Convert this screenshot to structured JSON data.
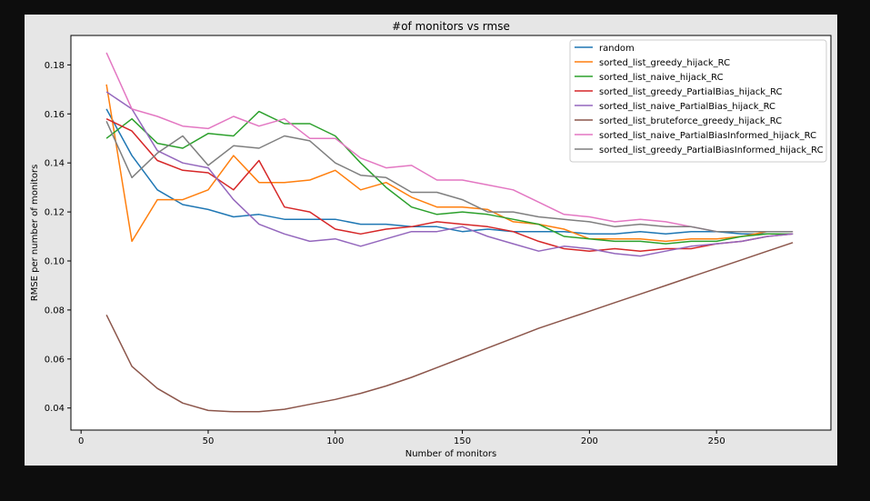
{
  "chart_data": {
    "type": "line",
    "title": "#of monitors vs rmse",
    "xlabel": "Number of monitors",
    "ylabel": "RMSE per number of monitors",
    "xlim": [
      -4,
      295
    ],
    "ylim": [
      0.031,
      0.192
    ],
    "xticks": [
      0,
      50,
      100,
      150,
      200,
      250
    ],
    "xtick_labels": [
      "0",
      "50",
      "100",
      "150",
      "200",
      "250"
    ],
    "yticks": [
      0.04,
      0.06,
      0.08,
      0.1,
      0.12,
      0.14,
      0.16,
      0.18
    ],
    "ytick_labels": [
      "0.04",
      "0.06",
      "0.08",
      "0.10",
      "0.12",
      "0.14",
      "0.16",
      "0.18"
    ],
    "grid": false,
    "legend_position": "top-right",
    "x": [
      10,
      20,
      30,
      40,
      50,
      60,
      70,
      80,
      90,
      100,
      110,
      120,
      130,
      140,
      150,
      160,
      170,
      180,
      190,
      200,
      210,
      220,
      230,
      240,
      250,
      260,
      270,
      280
    ],
    "series": [
      {
        "name": "random",
        "color": "#1f77b4",
        "values": [
          0.162,
          0.143,
          0.129,
          0.123,
          0.121,
          0.118,
          0.119,
          0.117,
          0.117,
          0.117,
          0.115,
          0.115,
          0.114,
          0.114,
          0.112,
          0.113,
          0.112,
          0.112,
          0.112,
          0.111,
          0.111,
          0.112,
          0.111,
          0.112,
          0.112,
          0.111,
          0.111,
          0.111
        ]
      },
      {
        "name": "sorted_list_greedy_hijack_RC",
        "color": "#ff7f0e",
        "values": [
          0.172,
          0.108,
          0.125,
          0.125,
          0.129,
          0.143,
          0.132,
          0.132,
          0.133,
          0.137,
          0.129,
          0.132,
          0.126,
          0.122,
          0.122,
          0.121,
          0.116,
          0.115,
          0.113,
          0.109,
          0.109,
          0.109,
          0.108,
          0.109,
          0.109,
          0.11,
          0.112,
          0.112
        ]
      },
      {
        "name": "sorted_list_naive_hijack_RC",
        "color": "#2ca02c",
        "values": [
          0.15,
          0.158,
          0.148,
          0.146,
          0.152,
          0.151,
          0.161,
          0.156,
          0.156,
          0.151,
          0.14,
          0.13,
          0.122,
          0.119,
          0.12,
          0.119,
          0.117,
          0.115,
          0.11,
          0.109,
          0.108,
          0.108,
          0.107,
          0.108,
          0.108,
          0.11,
          0.111,
          0.111
        ]
      },
      {
        "name": "sorted_list_greedy_PartialBias_hijack_RC",
        "color": "#d62728",
        "values": [
          0.158,
          0.153,
          0.141,
          0.137,
          0.136,
          0.129,
          0.141,
          0.122,
          0.12,
          0.113,
          0.111,
          0.113,
          0.114,
          0.116,
          0.115,
          0.114,
          0.112,
          0.108,
          0.105,
          0.104,
          0.105,
          0.104,
          0.105,
          0.105,
          0.107,
          0.108,
          0.11,
          0.111
        ]
      },
      {
        "name": "sorted_list_naive_PartialBias_hijack_RC",
        "color": "#9467bd",
        "values": [
          0.169,
          0.162,
          0.145,
          0.14,
          0.138,
          0.125,
          0.115,
          0.111,
          0.108,
          0.109,
          0.106,
          0.109,
          0.112,
          0.112,
          0.114,
          0.11,
          0.107,
          0.104,
          0.106,
          0.105,
          0.103,
          0.102,
          0.104,
          0.106,
          0.107,
          0.108,
          0.11,
          0.111
        ]
      },
      {
        "name": "sorted_list_bruteforce_greedy_hijack_RC",
        "color": "#8c564b",
        "values": [
          0.078,
          0.057,
          0.048,
          0.042,
          0.039,
          0.0385,
          0.0385,
          0.0395,
          0.0415,
          0.0435,
          0.046,
          0.049,
          0.0525,
          0.0565,
          0.0605,
          0.0645,
          0.0685,
          0.0725,
          0.076,
          0.0795,
          0.083,
          0.0865,
          0.09,
          0.0935,
          0.097,
          0.1005,
          0.104,
          0.1075
        ]
      },
      {
        "name": "sorted_list_naive_PartialBiasInformed_hijack_RC",
        "color": "#e377c2",
        "values": [
          0.185,
          0.162,
          0.159,
          0.155,
          0.154,
          0.159,
          0.155,
          0.158,
          0.15,
          0.15,
          0.142,
          0.138,
          0.139,
          0.133,
          0.133,
          0.131,
          0.129,
          0.124,
          0.119,
          0.118,
          0.116,
          0.117,
          0.116,
          0.114,
          0.112,
          0.112,
          0.112,
          0.112
        ]
      },
      {
        "name": "sorted_list_greedy_PartialBiasInformed_hijack_RC",
        "color": "#7f7f7f",
        "values": [
          0.157,
          0.134,
          0.144,
          0.151,
          0.139,
          0.147,
          0.146,
          0.151,
          0.149,
          0.14,
          0.135,
          0.134,
          0.128,
          0.128,
          0.125,
          0.12,
          0.12,
          0.118,
          0.117,
          0.116,
          0.114,
          0.115,
          0.114,
          0.114,
          0.112,
          0.112,
          0.112,
          0.112
        ]
      }
    ]
  }
}
